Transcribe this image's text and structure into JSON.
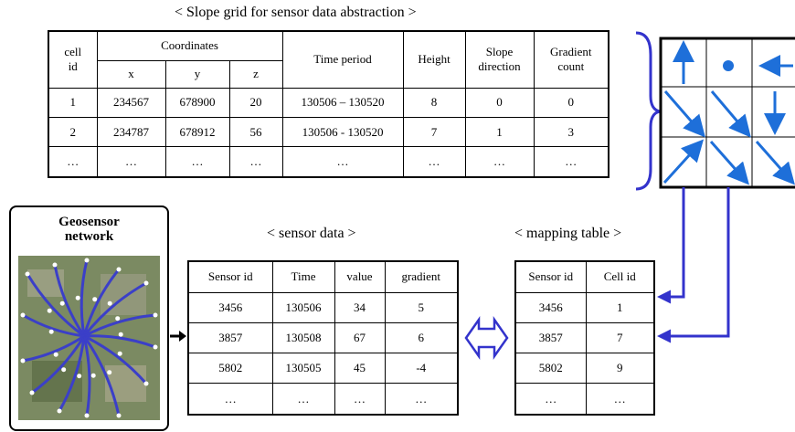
{
  "slope_grid": {
    "title": "< Slope grid for sensor data abstraction >",
    "headers": [
      "cell id",
      "Coordinates",
      "x",
      "y",
      "z",
      "Time period",
      "Height",
      "Slope direction",
      "Gradient count"
    ],
    "rows": [
      [
        "1",
        "234567",
        "678900",
        "20",
        "130506 – 130520",
        "8",
        "0",
        "0"
      ],
      [
        "2",
        "234787",
        "678912",
        "56",
        "130506 - 130520",
        "7",
        "1",
        "3"
      ],
      [
        "…",
        "…",
        "…",
        "…",
        "…",
        "…",
        "…",
        "…"
      ]
    ]
  },
  "geosensor": {
    "label": "Geosensor network"
  },
  "sensor_data": {
    "title": "< sensor data >",
    "headers": [
      "Sensor id",
      "Time",
      "value",
      "gradient"
    ],
    "rows": [
      [
        "3456",
        "130506",
        "34",
        "5"
      ],
      [
        "3857",
        "130508",
        "67",
        "6"
      ],
      [
        "5802",
        "130505",
        "45",
        "-4"
      ],
      [
        "…",
        "…",
        "…",
        "…"
      ]
    ]
  },
  "mapping_table": {
    "title": "< mapping table >",
    "headers": [
      "Sensor id",
      "Cell id"
    ],
    "rows": [
      [
        "3456",
        "1"
      ],
      [
        "3857",
        "7"
      ],
      [
        "5802",
        "9"
      ],
      [
        "…",
        "…"
      ]
    ]
  }
}
